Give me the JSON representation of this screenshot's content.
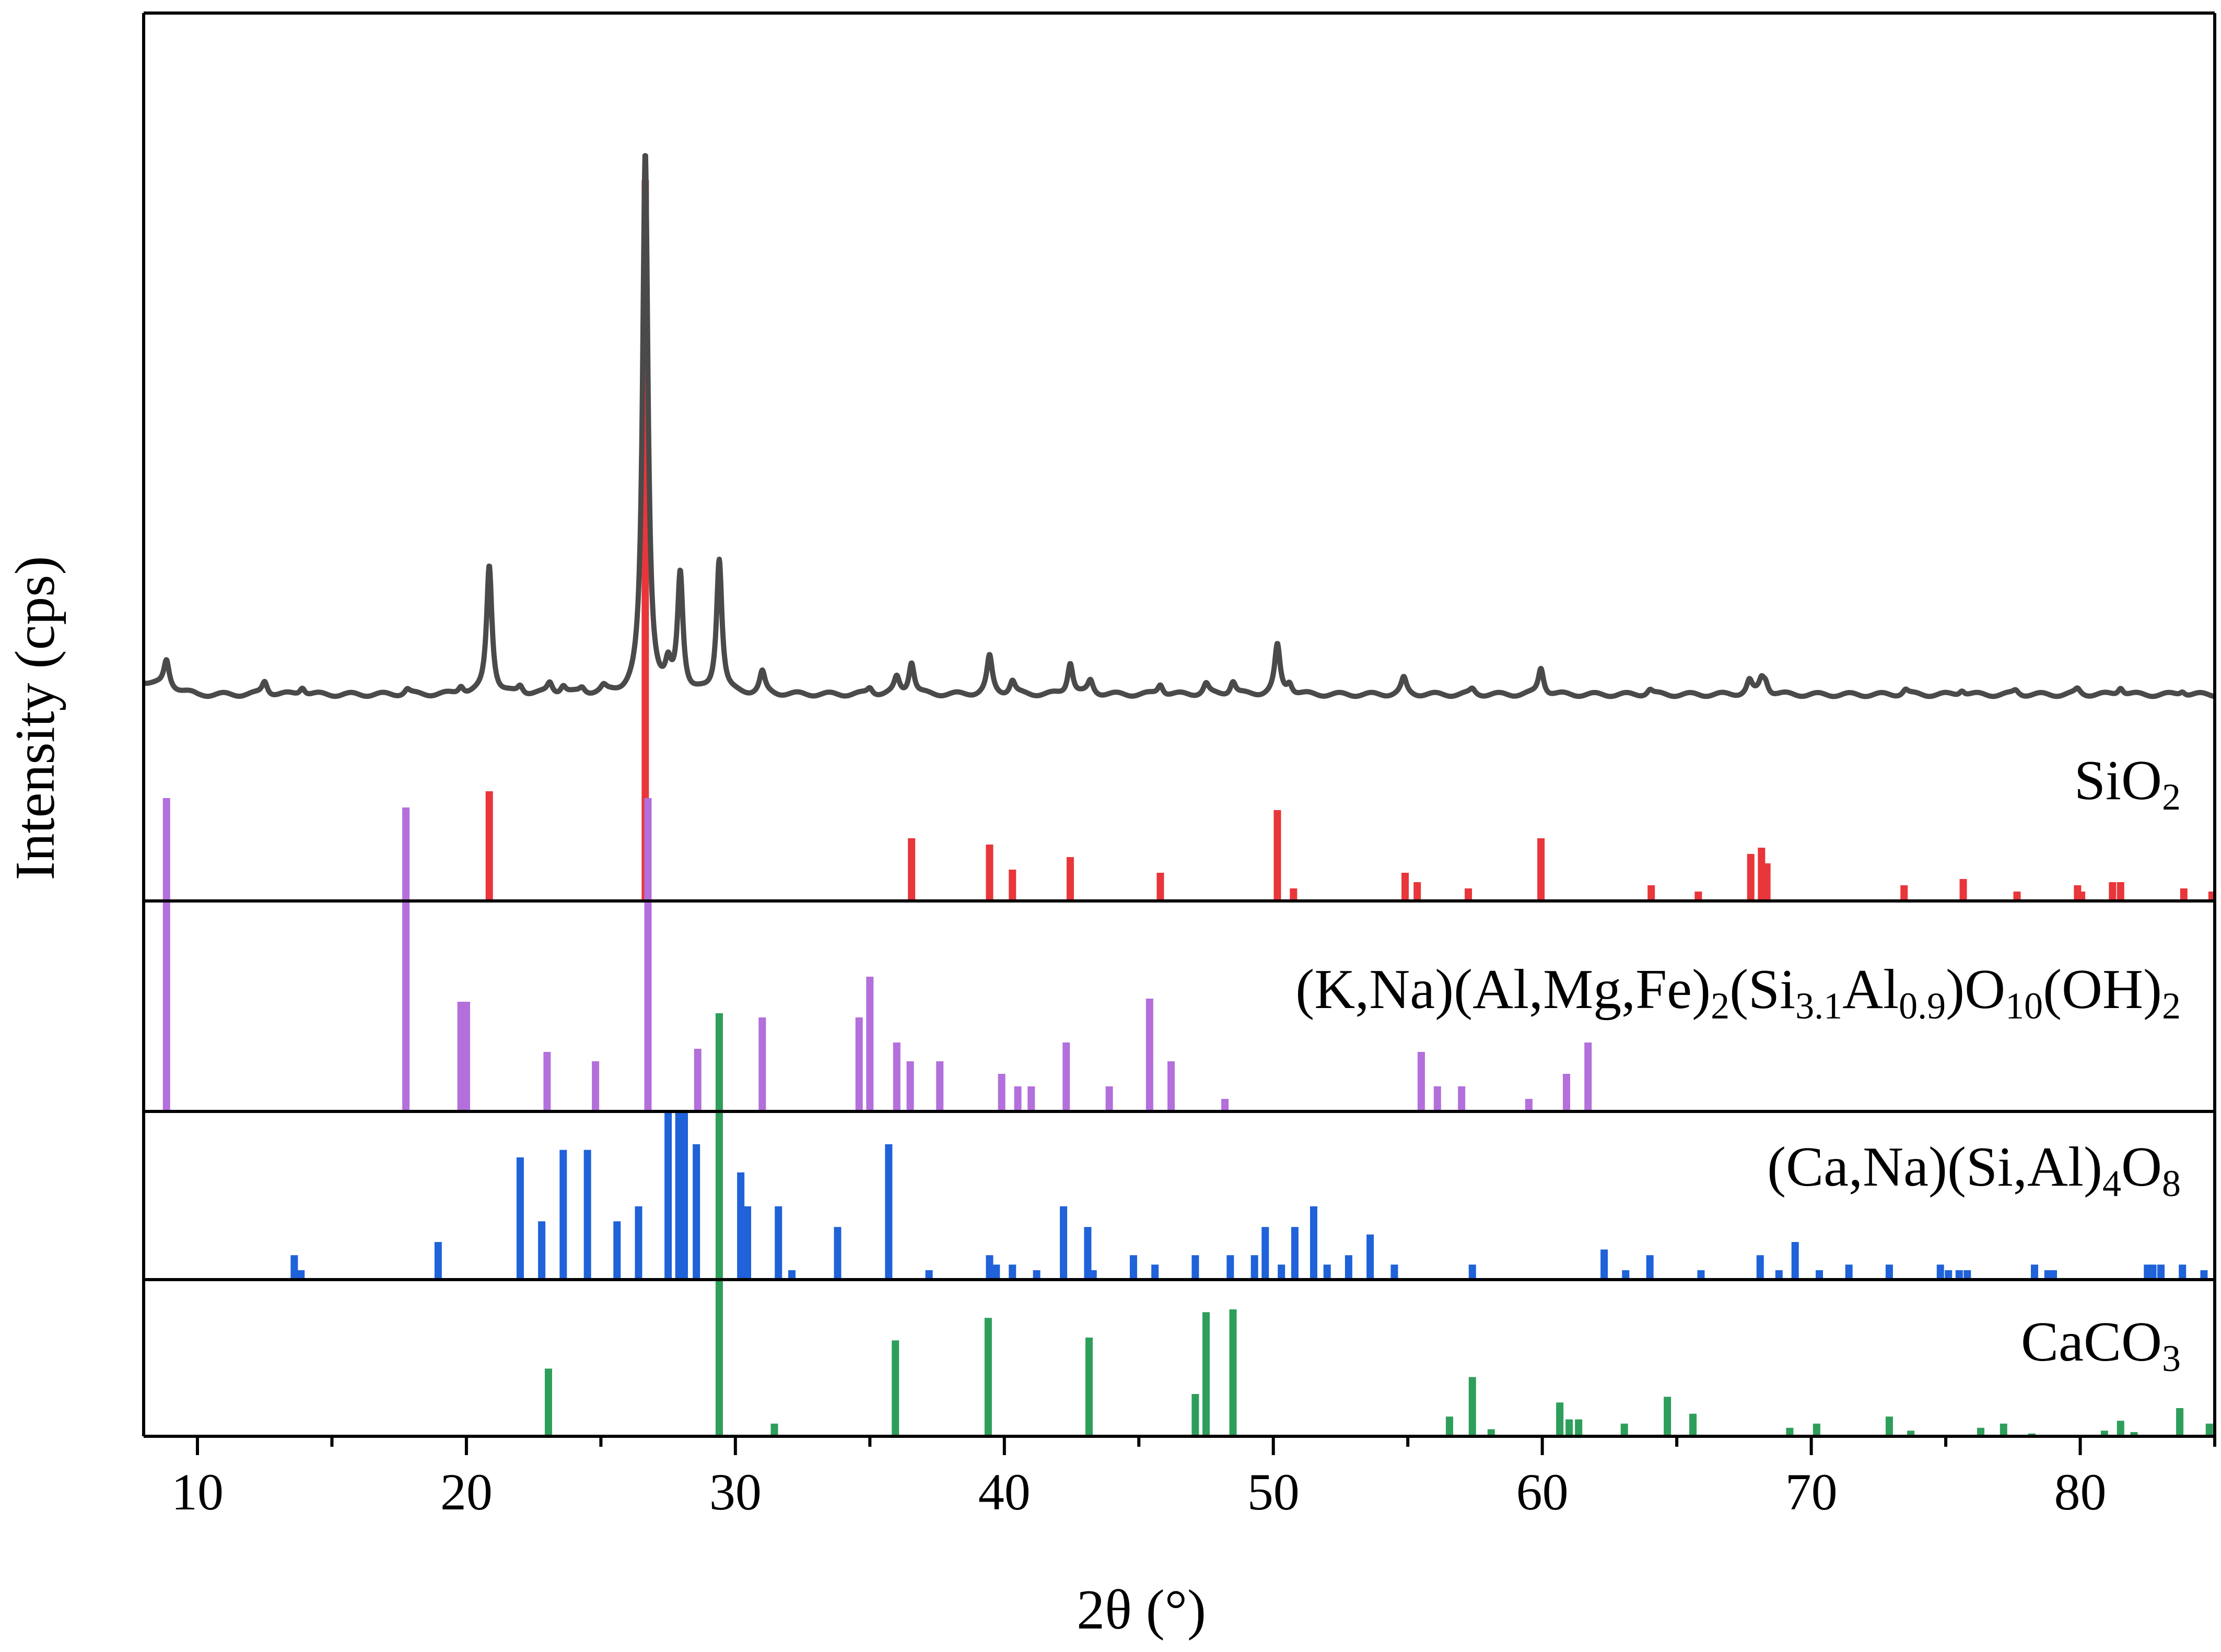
{
  "chart_data": {
    "type": "line",
    "title": "",
    "xlabel": "2θ (°)",
    "ylabel": "Intensity (cps)",
    "xlim": [
      8,
      85
    ],
    "grid": false,
    "legend": "none",
    "x_ticks": [
      10,
      20,
      30,
      40,
      50,
      60,
      70,
      80
    ],
    "x_tick_labels": [
      "10",
      "20",
      "30",
      "40",
      "50",
      "60",
      "70",
      "80"
    ],
    "pattern": {
      "color": "#4a4a4a",
      "baseline": 0.07,
      "peaks": [
        [
          8.85,
          0.05
        ],
        [
          12.5,
          0.025
        ],
        [
          13.9,
          0.015
        ],
        [
          17.8,
          0.01
        ],
        [
          19.8,
          0.015
        ],
        [
          20.85,
          0.24
        ],
        [
          22.0,
          0.015
        ],
        [
          23.1,
          0.02
        ],
        [
          23.6,
          0.015
        ],
        [
          24.3,
          0.01
        ],
        [
          25.1,
          0.01
        ],
        [
          26.65,
          1.0
        ],
        [
          27.5,
          0.04
        ],
        [
          27.95,
          0.22
        ],
        [
          29.4,
          0.25
        ],
        [
          31.0,
          0.04
        ],
        [
          35.0,
          0.012
        ],
        [
          36.0,
          0.03
        ],
        [
          36.55,
          0.06
        ],
        [
          39.45,
          0.07
        ],
        [
          40.3,
          0.025
        ],
        [
          42.45,
          0.06
        ],
        [
          43.2,
          0.025
        ],
        [
          45.8,
          0.02
        ],
        [
          47.5,
          0.02
        ],
        [
          48.5,
          0.025
        ],
        [
          50.15,
          0.09
        ],
        [
          50.6,
          0.02
        ],
        [
          54.85,
          0.03
        ],
        [
          57.4,
          0.01
        ],
        [
          59.95,
          0.05
        ],
        [
          64.0,
          0.01
        ],
        [
          67.7,
          0.025
        ],
        [
          68.15,
          0.025
        ],
        [
          68.3,
          0.02
        ],
        [
          73.5,
          0.01
        ],
        [
          75.6,
          0.01
        ],
        [
          77.6,
          0.008
        ],
        [
          79.9,
          0.01
        ],
        [
          81.5,
          0.015
        ],
        [
          83.8,
          0.008
        ]
      ]
    },
    "reference_patterns": [
      {
        "label": "SiO",
        "label_sub": "2",
        "color": "#e8363a",
        "sticks": [
          [
            20.85,
            0.35
          ],
          [
            26.65,
            2.3
          ],
          [
            36.55,
            0.2
          ],
          [
            39.45,
            0.18
          ],
          [
            40.3,
            0.1
          ],
          [
            42.45,
            0.14
          ],
          [
            45.8,
            0.09
          ],
          [
            50.15,
            0.29
          ],
          [
            50.75,
            0.04
          ],
          [
            54.9,
            0.09
          ],
          [
            55.35,
            0.06
          ],
          [
            57.25,
            0.04
          ],
          [
            59.95,
            0.2
          ],
          [
            64.05,
            0.05
          ],
          [
            65.8,
            0.03
          ],
          [
            67.75,
            0.15
          ],
          [
            68.15,
            0.17
          ],
          [
            68.35,
            0.12
          ],
          [
            73.45,
            0.05
          ],
          [
            75.65,
            0.07
          ],
          [
            77.65,
            0.03
          ],
          [
            79.9,
            0.05
          ],
          [
            80.05,
            0.03
          ],
          [
            81.2,
            0.06
          ],
          [
            81.5,
            0.06
          ],
          [
            83.85,
            0.04
          ],
          [
            84.9,
            0.03
          ]
        ]
      },
      {
        "label": "(K,Na)(Al,Mg,Fe)",
        "label_parts": [
          [
            "(K,Na)(Al,Mg,Fe)",
            ""
          ],
          [
            "2",
            "sub"
          ],
          [
            "(Si",
            ""
          ],
          [
            "3.1",
            "sub"
          ],
          [
            "Al",
            ""
          ],
          [
            "0.9",
            "sub"
          ],
          [
            ")O",
            ""
          ],
          [
            "10",
            "sub"
          ],
          [
            "(OH)",
            ""
          ],
          [
            "2",
            "sub"
          ]
        ],
        "color": "#b36fdb",
        "sticks": [
          [
            8.85,
            1.0
          ],
          [
            17.75,
            0.97
          ],
          [
            19.8,
            0.35
          ],
          [
            20.0,
            0.35
          ],
          [
            23.0,
            0.19
          ],
          [
            24.8,
            0.16
          ],
          [
            26.75,
            1.0
          ],
          [
            28.6,
            0.2
          ],
          [
            31.0,
            0.3
          ],
          [
            34.6,
            0.3
          ],
          [
            35.0,
            0.43
          ],
          [
            36.0,
            0.22
          ],
          [
            36.5,
            0.16
          ],
          [
            37.6,
            0.16
          ],
          [
            39.9,
            0.12
          ],
          [
            40.5,
            0.08
          ],
          [
            41.0,
            0.08
          ],
          [
            42.3,
            0.22
          ],
          [
            43.9,
            0.08
          ],
          [
            45.4,
            0.36
          ],
          [
            46.2,
            0.16
          ],
          [
            48.2,
            0.04
          ],
          [
            55.5,
            0.19
          ],
          [
            56.1,
            0.08
          ],
          [
            57.0,
            0.08
          ],
          [
            59.5,
            0.04
          ],
          [
            60.9,
            0.12
          ],
          [
            61.7,
            0.22
          ]
        ]
      },
      {
        "label": "(Ca,Na)(Si,Al)",
        "label_parts": [
          [
            "(Ca,Na)(Si,Al)",
            ""
          ],
          [
            "4",
            "sub"
          ],
          [
            "O",
            ""
          ],
          [
            "8",
            "sub"
          ]
        ],
        "color": "#1f62d9",
        "sticks": [
          [
            13.6,
            0.13
          ],
          [
            13.85,
            0.05
          ],
          [
            18.95,
            0.2
          ],
          [
            22.0,
            0.65
          ],
          [
            22.8,
            0.31
          ],
          [
            23.6,
            0.69
          ],
          [
            24.5,
            0.69
          ],
          [
            25.6,
            0.31
          ],
          [
            26.4,
            0.39
          ],
          [
            27.5,
            0.9
          ],
          [
            27.9,
            0.9
          ],
          [
            28.1,
            0.9
          ],
          [
            28.55,
            0.72
          ],
          [
            30.2,
            0.57
          ],
          [
            30.45,
            0.39
          ],
          [
            31.6,
            0.39
          ],
          [
            32.1,
            0.05
          ],
          [
            33.8,
            0.28
          ],
          [
            35.7,
            0.72
          ],
          [
            37.2,
            0.05
          ],
          [
            39.45,
            0.13
          ],
          [
            39.7,
            0.08
          ],
          [
            40.3,
            0.08
          ],
          [
            41.2,
            0.05
          ],
          [
            42.2,
            0.39
          ],
          [
            43.1,
            0.28
          ],
          [
            43.3,
            0.05
          ],
          [
            44.8,
            0.13
          ],
          [
            45.6,
            0.08
          ],
          [
            47.1,
            0.13
          ],
          [
            48.4,
            0.13
          ],
          [
            49.3,
            0.13
          ],
          [
            49.7,
            0.28
          ],
          [
            50.3,
            0.08
          ],
          [
            50.8,
            0.28
          ],
          [
            51.5,
            0.39
          ],
          [
            52.0,
            0.08
          ],
          [
            52.8,
            0.13
          ],
          [
            53.6,
            0.24
          ],
          [
            54.5,
            0.08
          ],
          [
            57.4,
            0.08
          ],
          [
            62.3,
            0.16
          ],
          [
            63.1,
            0.05
          ],
          [
            64.0,
            0.13
          ],
          [
            65.9,
            0.05
          ],
          [
            68.1,
            0.13
          ],
          [
            68.8,
            0.05
          ],
          [
            69.4,
            0.2
          ],
          [
            70.3,
            0.05
          ],
          [
            71.4,
            0.08
          ],
          [
            72.9,
            0.08
          ],
          [
            74.8,
            0.08
          ],
          [
            75.1,
            0.05
          ],
          [
            75.5,
            0.05
          ],
          [
            75.8,
            0.05
          ],
          [
            78.3,
            0.08
          ],
          [
            78.8,
            0.05
          ],
          [
            79.0,
            0.05
          ],
          [
            82.5,
            0.08
          ],
          [
            82.7,
            0.08
          ],
          [
            83.0,
            0.08
          ],
          [
            83.8,
            0.08
          ],
          [
            84.6,
            0.05
          ]
        ]
      },
      {
        "label": "CaCO",
        "label_sub": "3",
        "color": "#2e9e5b",
        "sticks": [
          [
            23.05,
            0.48
          ],
          [
            29.4,
            3.0
          ],
          [
            31.45,
            0.09
          ],
          [
            35.95,
            0.68
          ],
          [
            39.4,
            0.84
          ],
          [
            43.15,
            0.7
          ],
          [
            47.1,
            0.3
          ],
          [
            47.5,
            0.88
          ],
          [
            48.5,
            0.9
          ],
          [
            56.55,
            0.14
          ],
          [
            57.4,
            0.42
          ],
          [
            58.1,
            0.05
          ],
          [
            60.65,
            0.24
          ],
          [
            61.0,
            0.12
          ],
          [
            61.35,
            0.12
          ],
          [
            63.05,
            0.09
          ],
          [
            64.65,
            0.28
          ],
          [
            65.6,
            0.16
          ],
          [
            69.2,
            0.06
          ],
          [
            70.2,
            0.09
          ],
          [
            72.9,
            0.14
          ],
          [
            73.7,
            0.04
          ],
          [
            76.3,
            0.06
          ],
          [
            77.15,
            0.09
          ],
          [
            78.2,
            0.02
          ],
          [
            80.9,
            0.04
          ],
          [
            81.5,
            0.11
          ],
          [
            82.0,
            0.03
          ],
          [
            83.7,
            0.2
          ],
          [
            84.8,
            0.09
          ]
        ]
      }
    ]
  }
}
